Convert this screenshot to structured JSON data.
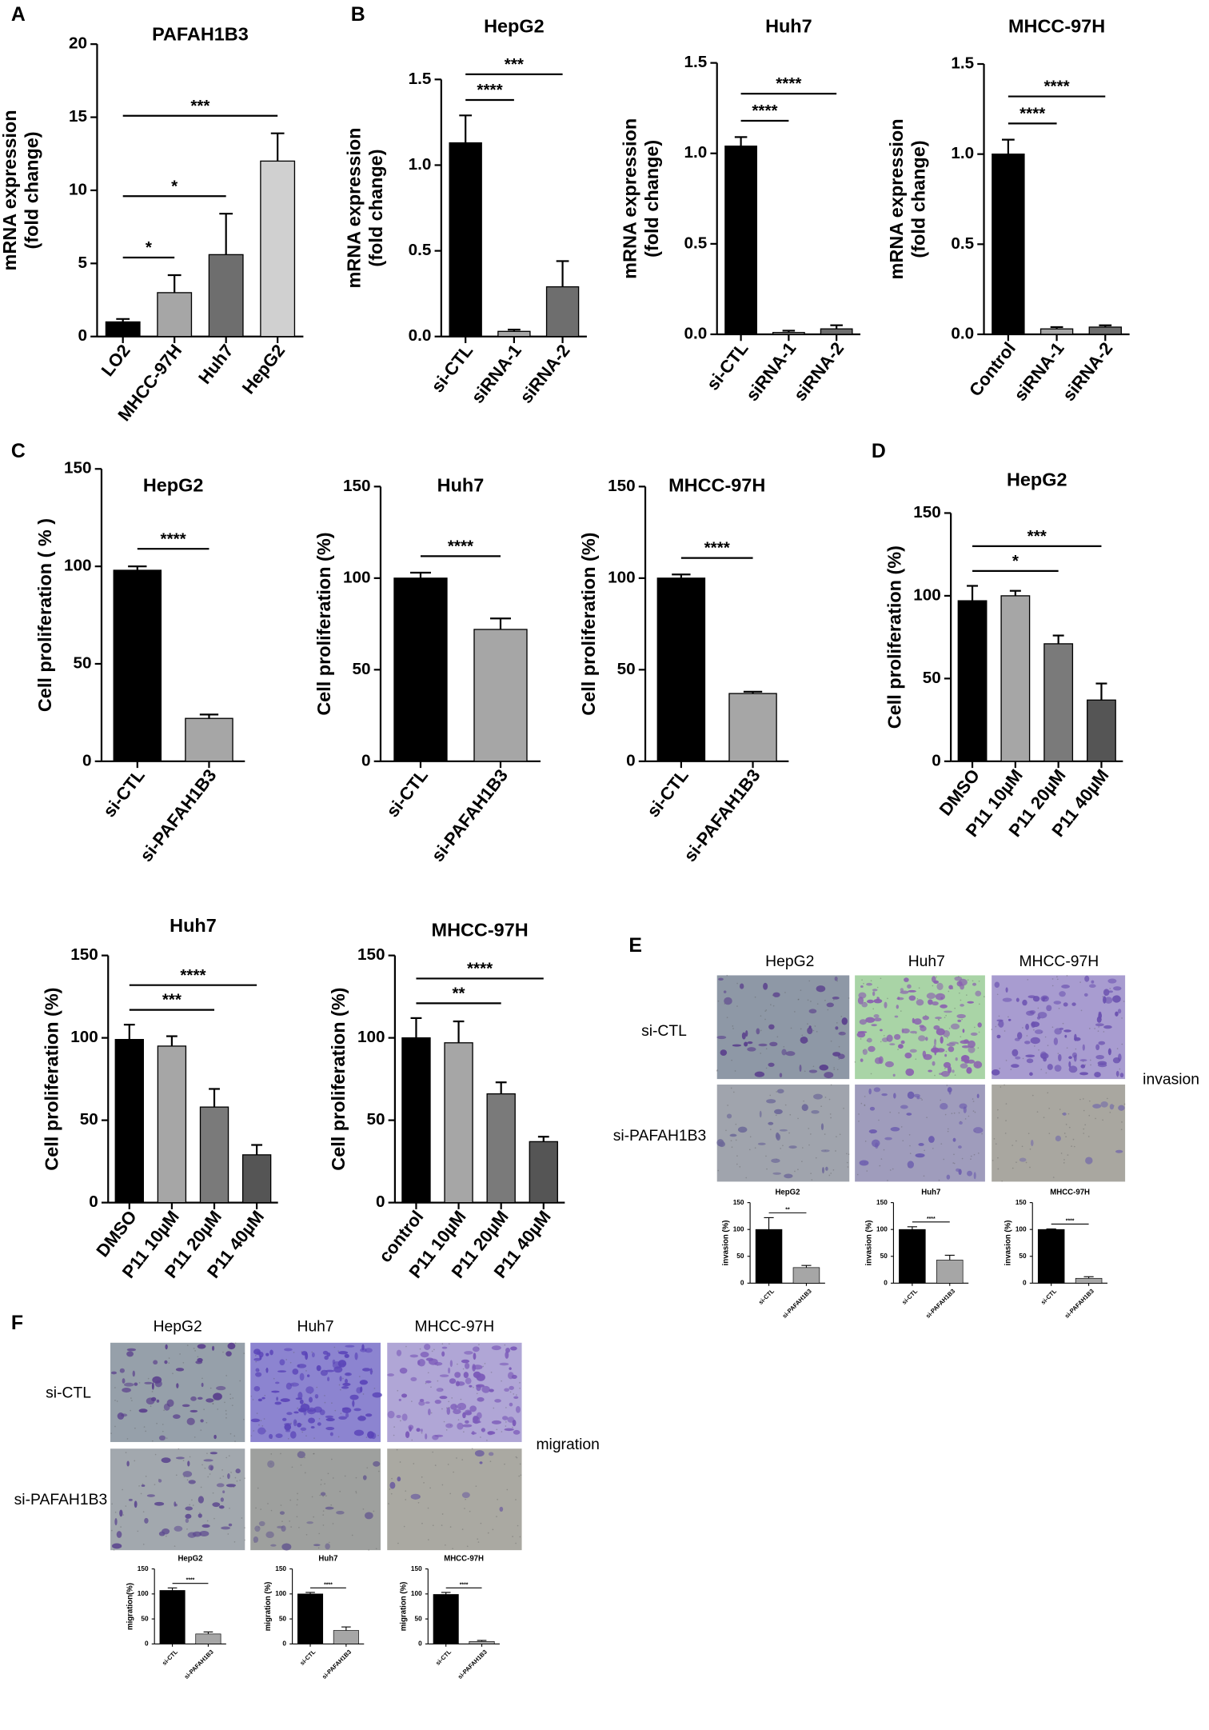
{
  "panels": [
    "A",
    "B",
    "C",
    "D",
    "E",
    "F"
  ],
  "invasion_images": {
    "columns": [
      "HepG2",
      "Huh7",
      "MHCC-97H"
    ],
    "rows": [
      "si-CTL",
      "si-PAFAH1B3"
    ],
    "label": "invasion"
  },
  "migration_images": {
    "columns": [
      "HepG2",
      "Huh7",
      "MHCC-97H"
    ],
    "rows": [
      "si-CTL",
      "si-PAFAH1B3"
    ],
    "label": "migration"
  },
  "chart_data": [
    {
      "type": "bar",
      "title": "PAFAH1B3",
      "ylabel": [
        "mRNA expression",
        "(fold change)"
      ],
      "categories": [
        "LO2",
        "MHCC-97H",
        "Huh7",
        "HepG2"
      ],
      "values": [
        1,
        3,
        5.6,
        12
      ],
      "errors": [
        0.2,
        1.2,
        2.8,
        1.9
      ],
      "colors": [
        "#000000",
        "#a6a6a6",
        "#6e6e6e",
        "#d0d0d0"
      ],
      "ylim": [
        0,
        20
      ],
      "yticks": [
        0,
        5,
        10,
        15,
        20
      ],
      "annotations": [
        {
          "label": "*",
          "between": [
            "LO2",
            "MHCC-97H"
          ]
        },
        {
          "label": "*",
          "between": [
            "LO2",
            "Huh7"
          ]
        },
        {
          "label": "***",
          "between": [
            "LO2",
            "HepG2"
          ]
        }
      ]
    },
    {
      "type": "bar",
      "title": "HepG2",
      "ylabel": [
        "mRNA expression",
        "(fold change)"
      ],
      "categories": [
        "si-CTL",
        "siRNA-1",
        "siRNA-2"
      ],
      "values": [
        1.13,
        0.03,
        0.29
      ],
      "errors": [
        0.16,
        0.01,
        0.15
      ],
      "colors": [
        "#000000",
        "#a6a6a6",
        "#6e6e6e"
      ],
      "ylim": [
        0,
        1.5
      ],
      "yticks": [
        {
          "value": 0,
          "label": "0.0"
        },
        {
          "value": 0.5,
          "label": "0.5"
        },
        {
          "value": 1,
          "label": "1.0"
        },
        {
          "value": 1.5,
          "label": "1.5"
        }
      ],
      "annotations": [
        {
          "label": "****",
          "between": [
            "si-CTL",
            "siRNA-1"
          ]
        },
        {
          "label": "***",
          "between": [
            "si-CTL",
            "siRNA-2"
          ]
        }
      ]
    },
    {
      "type": "bar",
      "title": "Huh7",
      "ylabel": [
        "mRNA expression",
        "(fold change)"
      ],
      "categories": [
        "si-CTL",
        "siRNA-1",
        "siRNA-2"
      ],
      "values": [
        1.04,
        0.01,
        0.03
      ],
      "errors": [
        0.05,
        0.01,
        0.02
      ],
      "colors": [
        "#000000",
        "#a6a6a6",
        "#6e6e6e"
      ],
      "ylim": [
        0,
        1.5
      ],
      "yticks": [
        {
          "value": 0,
          "label": "0.0"
        },
        {
          "value": 0.5,
          "label": "0.5"
        },
        {
          "value": 1,
          "label": "1.0"
        },
        {
          "value": 1.5,
          "label": "1.5"
        }
      ],
      "annotations": [
        {
          "label": "****",
          "between": [
            "si-CTL",
            "siRNA-1"
          ]
        },
        {
          "label": "****",
          "between": [
            "si-CTL",
            "siRNA-2"
          ]
        }
      ]
    },
    {
      "type": "bar",
      "title": "MHCC-97H",
      "ylabel": [
        "mRNA expression",
        "(fold change)"
      ],
      "categories": [
        "Control",
        "siRNA-1",
        "siRNA-2"
      ],
      "values": [
        1,
        0.03,
        0.04
      ],
      "errors": [
        0.08,
        0.01,
        0.01
      ],
      "colors": [
        "#000000",
        "#a6a6a6",
        "#6e6e6e"
      ],
      "ylim": [
        0,
        1.5
      ],
      "yticks": [
        {
          "value": 0,
          "label": "0.0"
        },
        {
          "value": 0.5,
          "label": "0.5"
        },
        {
          "value": 1,
          "label": "1.0"
        },
        {
          "value": 1.5,
          "label": "1.5"
        }
      ],
      "annotations": [
        {
          "label": "****",
          "between": [
            "Control",
            "siRNA-1"
          ]
        },
        {
          "label": "****",
          "between": [
            "Control",
            "siRNA-2"
          ]
        }
      ]
    },
    {
      "type": "bar",
      "title": "HepG2",
      "ylabel": [
        "Cell proliferation ( % )"
      ],
      "categories": [
        "si-CTL",
        "si-PAFAH1B3"
      ],
      "values": [
        98,
        22
      ],
      "errors": [
        2,
        2
      ],
      "colors": [
        "#000000",
        "#a6a6a6"
      ],
      "ylim": [
        0,
        150
      ],
      "yticks": [
        0,
        50,
        100,
        150
      ],
      "annotations": [
        {
          "label": "****",
          "between": [
            "si-CTL",
            "si-PAFAH1B3"
          ]
        }
      ]
    },
    {
      "type": "bar",
      "title": "Huh7",
      "ylabel": [
        "Cell proliferation (%)"
      ],
      "categories": [
        "si-CTL",
        "si-PAFAH1B3"
      ],
      "values": [
        100,
        72
      ],
      "errors": [
        3,
        6
      ],
      "colors": [
        "#000000",
        "#a6a6a6"
      ],
      "ylim": [
        0,
        150
      ],
      "yticks": [
        0,
        50,
        100,
        150
      ],
      "annotations": [
        {
          "label": "****",
          "between": [
            "si-CTL",
            "si-PAFAH1B3"
          ]
        }
      ]
    },
    {
      "type": "bar",
      "title": "MHCC-97H",
      "ylabel": [
        "Cell proliferation (%)"
      ],
      "categories": [
        "si-CTL",
        "si-PAFAH1B3"
      ],
      "values": [
        100,
        37
      ],
      "errors": [
        2,
        1
      ],
      "colors": [
        "#000000",
        "#a6a6a6"
      ],
      "ylim": [
        0,
        150
      ],
      "yticks": [
        0,
        50,
        100,
        150
      ],
      "annotations": [
        {
          "label": "****",
          "between": [
            "si-CTL",
            "si-PAFAH1B3"
          ]
        }
      ]
    },
    {
      "type": "bar",
      "title": "HepG2",
      "ylabel": [
        "Cell proliferation (%)"
      ],
      "categories": [
        "DMSO",
        "P11 10µM",
        "P11 20µM",
        "P11 40µM"
      ],
      "values": [
        97,
        100,
        71,
        37
      ],
      "errors": [
        9,
        3,
        5,
        10
      ],
      "colors": [
        "#000000",
        "#a6a6a6",
        "#7a7a7a",
        "#555555"
      ],
      "ylim": [
        0,
        150
      ],
      "yticks": [
        0,
        50,
        100,
        150
      ],
      "annotations": [
        {
          "label": "*",
          "between": [
            "DMSO",
            "P11 20µM"
          ]
        },
        {
          "label": "***",
          "between": [
            "DMSO",
            "P11 40µM"
          ]
        }
      ]
    },
    {
      "type": "bar",
      "title": "Huh7",
      "ylabel": [
        "Cell proliferation (%)"
      ],
      "categories": [
        "DMSO",
        "P11 10µM",
        "P11 20µM",
        "P11 40µM"
      ],
      "values": [
        99,
        95,
        58,
        29
      ],
      "errors": [
        9,
        6,
        11,
        6
      ],
      "colors": [
        "#000000",
        "#a6a6a6",
        "#7a7a7a",
        "#555555"
      ],
      "ylim": [
        0,
        150
      ],
      "yticks": [
        0,
        50,
        100,
        150
      ],
      "annotations": [
        {
          "label": "***",
          "between": [
            "DMSO",
            "P11 20µM"
          ]
        },
        {
          "label": "****",
          "between": [
            "DMSO",
            "P11 40µM"
          ]
        }
      ]
    },
    {
      "type": "bar",
      "title": "MHCC-97H",
      "ylabel": [
        "Cell proliferation (%)"
      ],
      "categories": [
        "control",
        "P11 10µM",
        "P11 20µM",
        "P11 40µM"
      ],
      "values": [
        100,
        97,
        66,
        37
      ],
      "errors": [
        12,
        13,
        7,
        3
      ],
      "colors": [
        "#000000",
        "#a6a6a6",
        "#7a7a7a",
        "#555555"
      ],
      "ylim": [
        0,
        150
      ],
      "yticks": [
        0,
        50,
        100,
        150
      ],
      "annotations": [
        {
          "label": "**",
          "between": [
            "control",
            "P11 20µM"
          ]
        },
        {
          "label": "****",
          "between": [
            "control",
            "P11 40µM"
          ]
        }
      ]
    },
    {
      "type": "bar",
      "title": "HepG2",
      "ylabel": [
        "invasion (%)"
      ],
      "categories": [
        "si-CTL",
        "si-PAFAH1B3"
      ],
      "values": [
        100,
        29
      ],
      "errors": [
        22,
        4
      ],
      "colors": [
        "#000000",
        "#a6a6a6"
      ],
      "ylim": [
        0,
        150
      ],
      "yticks": [
        0,
        50,
        100,
        150
      ],
      "annotations": [
        {
          "label": "**",
          "between": [
            "si-CTL",
            "si-PAFAH1B3"
          ]
        }
      ]
    },
    {
      "type": "bar",
      "title": "Huh7",
      "ylabel": [
        "invasion (%)"
      ],
      "categories": [
        "si-CTL",
        "si-PAFAH1B3"
      ],
      "values": [
        100,
        43
      ],
      "errors": [
        5,
        9
      ],
      "colors": [
        "#000000",
        "#a6a6a6"
      ],
      "ylim": [
        0,
        150
      ],
      "yticks": [
        0,
        50,
        100,
        150
      ],
      "annotations": [
        {
          "label": "****",
          "between": [
            "si-CTL",
            "si-PAFAH1B3"
          ]
        }
      ]
    },
    {
      "type": "bar",
      "title": "MHCC-97H",
      "ylabel": [
        "invasion (%)"
      ],
      "categories": [
        "si-CTL",
        "si-PAFAH1B3"
      ],
      "values": [
        100,
        9
      ],
      "errors": [
        1,
        3
      ],
      "colors": [
        "#000000",
        "#a6a6a6"
      ],
      "ylim": [
        0,
        150
      ],
      "yticks": [
        0,
        50,
        100,
        150
      ],
      "annotations": [
        {
          "label": "****",
          "between": [
            "si-CTL",
            "si-PAFAH1B3"
          ]
        }
      ]
    },
    {
      "type": "bar",
      "title": "HepG2",
      "ylabel": [
        "migration(%)"
      ],
      "categories": [
        "si-CTL",
        "si-PAFAH1B3"
      ],
      "values": [
        107,
        20
      ],
      "errors": [
        5,
        4
      ],
      "colors": [
        "#000000",
        "#a6a6a6"
      ],
      "ylim": [
        0,
        150
      ],
      "yticks": [
        0,
        50,
        100,
        150
      ],
      "annotations": [
        {
          "label": "****",
          "between": [
            "si-CTL",
            "si-PAFAH1B3"
          ]
        }
      ]
    },
    {
      "type": "bar",
      "title": "Huh7",
      "ylabel": [
        "migration (%)"
      ],
      "categories": [
        "si-CTL",
        "si-PAFAH1B3"
      ],
      "values": [
        100,
        27
      ],
      "errors": [
        3,
        7
      ],
      "colors": [
        "#000000",
        "#a6a6a6"
      ],
      "ylim": [
        0,
        150
      ],
      "yticks": [
        0,
        50,
        100,
        150
      ],
      "annotations": [
        {
          "label": "****",
          "between": [
            "si-CTL",
            "si-PAFAH1B3"
          ]
        }
      ]
    },
    {
      "type": "bar",
      "title": "MHCC-97H",
      "ylabel": [
        "migration (%)"
      ],
      "categories": [
        "si-CTL",
        "si-PAFAH1B3"
      ],
      "values": [
        99,
        5
      ],
      "errors": [
        4,
        2
      ],
      "colors": [
        "#000000",
        "#a6a6a6"
      ],
      "ylim": [
        0,
        150
      ],
      "yticks": [
        0,
        50,
        100,
        150
      ],
      "annotations": [
        {
          "label": "****",
          "between": [
            "si-CTL",
            "si-PAFAH1B3"
          ]
        }
      ]
    }
  ]
}
